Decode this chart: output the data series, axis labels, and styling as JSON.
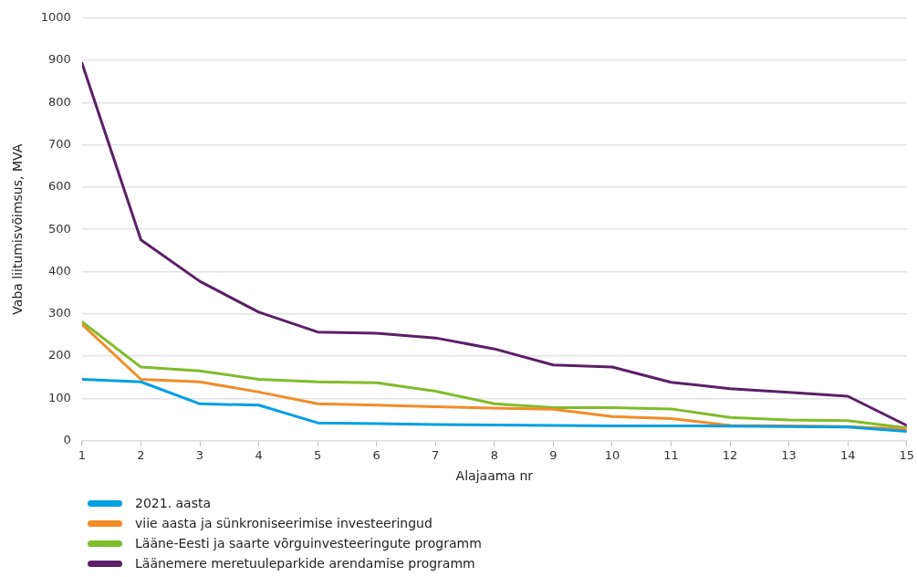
{
  "chart_data": {
    "type": "line",
    "xlabel": "Alajaama nr",
    "ylabel": "Vaba liitumisvõimsus, MVA",
    "x": [
      1,
      2,
      3,
      4,
      5,
      6,
      7,
      8,
      9,
      10,
      11,
      12,
      13,
      14,
      15
    ],
    "xlim": [
      1,
      15
    ],
    "xticks": [
      1,
      2,
      3,
      4,
      5,
      6,
      7,
      8,
      9,
      10,
      11,
      12,
      13,
      14,
      15
    ],
    "ylim": [
      0,
      1000
    ],
    "yticks": [
      0,
      100,
      200,
      300,
      400,
      500,
      600,
      700,
      800,
      900,
      1000
    ],
    "grid": "y",
    "legend": "bottom left",
    "marker": "none",
    "line_style": "solid",
    "series": [
      {
        "name": "2021. aasta",
        "color": "#00a0e3",
        "values": [
          145,
          139,
          87,
          84,
          42,
          40,
          38,
          37,
          36,
          35,
          35,
          34,
          33,
          32,
          22
        ]
      },
      {
        "name": "viie aasta ja sünkroniseerimise investeeringud",
        "color": "#f28c28",
        "values": [
          275,
          145,
          139,
          115,
          87,
          84,
          80,
          77,
          74,
          57,
          52,
          36,
          35,
          33,
          27
        ]
      },
      {
        "name": "Lääne-Eesti ja saarte võrguinvesteeringute programm",
        "color": "#7ebd2a",
        "values": [
          281,
          174,
          165,
          145,
          139,
          137,
          117,
          87,
          78,
          78,
          75,
          55,
          49,
          47,
          30
        ]
      },
      {
        "name": "Läänemere meretuuleparkide arendamise programm",
        "color": "#5c1f68",
        "values": [
          893,
          475,
          377,
          304,
          257,
          254,
          243,
          217,
          179,
          174,
          138,
          123,
          114,
          105,
          36
        ]
      }
    ]
  }
}
